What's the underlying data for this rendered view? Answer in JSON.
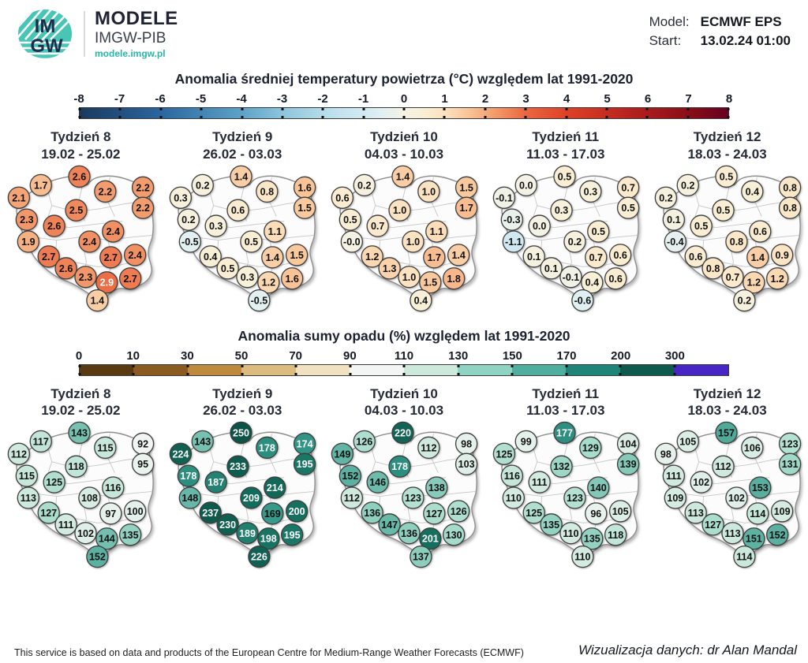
{
  "header": {
    "logo": {
      "line1": "IM",
      "line2": "GW"
    },
    "brand": "MODELE",
    "brand_sub": "IMGW-PIB",
    "url": "modele.imgw.pl",
    "model_label": "Model:",
    "model_value": "ECMWF EPS",
    "start_label": "Start:",
    "start_value": "13.02.24 01:00"
  },
  "footer": {
    "left": "This service is based on data and products of the European Centre for Medium-Range Weather Forecasts (ECMWF)",
    "right": "Wizualizacja danych: dr Alan Mandal"
  },
  "weeks": [
    {
      "title": "Tydzień 8",
      "dates": "19.02 - 25.02"
    },
    {
      "title": "Tydzień 9",
      "dates": "26.02 - 03.03"
    },
    {
      "title": "Tydzień 10",
      "dates": "04.03 - 10.03"
    },
    {
      "title": "Tydzień 11",
      "dates": "11.03 - 17.03"
    },
    {
      "title": "Tydzień 12",
      "dates": "18.03 - 24.03"
    }
  ],
  "stations": [
    [
      52,
      26
    ],
    [
      101,
      15
    ],
    [
      134,
      34
    ],
    [
      182,
      29
    ],
    [
      24,
      42
    ],
    [
      97,
      58
    ],
    [
      182,
      55
    ],
    [
      34,
      70
    ],
    [
      69,
      78
    ],
    [
      144,
      85
    ],
    [
      114,
      98
    ],
    [
      36,
      98
    ],
    [
      62,
      117
    ],
    [
      141,
      118
    ],
    [
      172,
      115
    ],
    [
      84,
      132
    ],
    [
      109,
      143
    ],
    [
      136,
      150
    ],
    [
      166,
      145
    ],
    [
      124,
      173
    ]
  ],
  "chart_data": [
    {
      "type": "scatter",
      "title": "Anomalia średniej temperatury powietrza (°C) względem lat 1991-2020",
      "unit": "°C",
      "legend_position": "top",
      "colorbar": {
        "kind": "continuous",
        "range": [
          -8,
          8
        ],
        "ticks": [
          "-8",
          "-7",
          "-6",
          "-5",
          "-4",
          "-3",
          "-2",
          "-1",
          "0",
          "1",
          "2",
          "3",
          "4",
          "5",
          "6",
          "7",
          "8"
        ],
        "stops": [
          [
            -8,
            "#1a3a5e"
          ],
          [
            -6,
            "#2a669f"
          ],
          [
            -4,
            "#5ea2c9"
          ],
          [
            -3,
            "#8ec4dc"
          ],
          [
            -2,
            "#b4dcea"
          ],
          [
            -1.5,
            "#c6e4ef"
          ],
          [
            -1,
            "#d2e9f2"
          ],
          [
            -0.5,
            "#e2f0f2"
          ],
          [
            0,
            "#f4f2e4"
          ],
          [
            0.5,
            "#f9eed4"
          ],
          [
            1,
            "#fbe2c0"
          ],
          [
            1.5,
            "#f9c99e"
          ],
          [
            2,
            "#f5ab7c"
          ],
          [
            2.5,
            "#f0895c"
          ],
          [
            3,
            "#ea6740"
          ],
          [
            4,
            "#dd4227"
          ],
          [
            5,
            "#c62d20"
          ],
          [
            6,
            "#a91b1e"
          ],
          [
            7,
            "#8a0e17"
          ],
          [
            8,
            "#67001f"
          ]
        ]
      },
      "white_text_min": 2.9,
      "series": [
        {
          "name": "Tydzień 8",
          "values": [
            "1.7",
            "2.6",
            "2.2",
            "2.2",
            "2.1",
            "2.5",
            "2.2",
            "2.3",
            "2.6",
            "2.4",
            "2.4",
            "1.9",
            "2.7",
            "2.7",
            "2.4",
            "2.6",
            "2.3",
            "2.9",
            "2.7",
            "1.4"
          ]
        },
        {
          "name": "Tydzień 9",
          "values": [
            "0.2",
            "1.4",
            "0.8",
            "1.6",
            "0.3",
            "0.6",
            "1.5",
            "0.2",
            "0.3",
            "1.1",
            "0.5",
            "-0.5",
            "0.4",
            "1.4",
            "1.5",
            "0.5",
            "0.3",
            "1.2",
            "1.6",
            "-0.5"
          ]
        },
        {
          "name": "Tydzień 10",
          "values": [
            "0.2",
            "1.4",
            "1.0",
            "1.5",
            "0.6",
            "1.0",
            "1.7",
            "0.5",
            "0.7",
            "1.1",
            "1.0",
            "-0.0",
            "1.2",
            "1.7",
            "1.4",
            "1.3",
            "1.0",
            "1.5",
            "1.8",
            "0.4"
          ]
        },
        {
          "name": "Tydzień 11",
          "values": [
            "0.0",
            "0.5",
            "0.3",
            "0.7",
            "-0.1",
            "0.3",
            "0.5",
            "-0.3",
            "0.0",
            "0.5",
            "0.2",
            "-1.1",
            "0.1",
            "0.7",
            "0.6",
            "0.1",
            "-0.1",
            "0.4",
            "0.6",
            "-0.6"
          ]
        },
        {
          "name": "Tydzień 12",
          "values": [
            "0.2",
            "0.5",
            "0.4",
            "0.8",
            "0.2",
            "0.5",
            "0.8",
            "0.1",
            "0.5",
            "0.6",
            "0.8",
            "-0.4",
            "0.6",
            "1.4",
            "0.9",
            "0.8",
            "0.7",
            "1.2",
            "1.2",
            "0.2"
          ]
        }
      ]
    },
    {
      "type": "scatter",
      "title": "Anomalia sumy opadu (%) względem lat 1991-2020",
      "unit": "%",
      "legend_position": "top",
      "colorbar": {
        "kind": "segmented",
        "ticks": [
          "0",
          "10",
          "30",
          "50",
          "70",
          "90",
          "110",
          "130",
          "150",
          "170",
          "200",
          "300"
        ],
        "segment_colors": [
          "#5a3a10",
          "#8a5a20",
          "#c08a3e",
          "#dbbc7e",
          "#f0e2c0",
          "#f3f5f4",
          "#cde9dc",
          "#8fd4c2",
          "#4fae9d",
          "#1f8578",
          "#0e5a4c",
          "#4826c6"
        ],
        "stops": [
          [
            0,
            "#5a3a10"
          ],
          [
            10,
            "#8a5a20"
          ],
          [
            30,
            "#c08a3e"
          ],
          [
            50,
            "#dbbc7e"
          ],
          [
            70,
            "#f0e2c0"
          ],
          [
            90,
            "#f3f5f4"
          ],
          [
            110,
            "#d4ebe1"
          ],
          [
            130,
            "#a4dbca"
          ],
          [
            150,
            "#5fb3a3"
          ],
          [
            170,
            "#35998a"
          ],
          [
            200,
            "#15705f"
          ],
          [
            250,
            "#0c5347"
          ],
          [
            300,
            "#083c32"
          ]
        ]
      },
      "white_text_min": 170,
      "series": [
        {
          "name": "Tydzień 8",
          "values": [
            "117",
            "143",
            "115",
            "92",
            "112",
            "118",
            "95",
            "115",
            "125",
            "116",
            "108",
            "113",
            "127",
            "97",
            "100",
            "111",
            "102",
            "144",
            "135",
            "152"
          ]
        },
        {
          "name": "Tydzień 9",
          "values": [
            "143",
            "250",
            "178",
            "174",
            "224",
            "233",
            "195",
            "178",
            "187",
            "214",
            "209",
            "148",
            "237",
            "169",
            "200",
            "230",
            "189",
            "198",
            "195",
            "226"
          ]
        },
        {
          "name": "Tydzień 10",
          "values": [
            "126",
            "220",
            "112",
            "98",
            "149",
            "178",
            "103",
            "152",
            "146",
            "138",
            "123",
            "112",
            "136",
            "127",
            "126",
            "147",
            "136",
            "201",
            "130",
            "137"
          ]
        },
        {
          "name": "Tydzień 11",
          "values": [
            "99",
            "177",
            "129",
            "104",
            "125",
            "132",
            "139",
            "116",
            "111",
            "140",
            "123",
            "110",
            "125",
            "96",
            "105",
            "135",
            "110",
            "135",
            "118",
            "110"
          ]
        },
        {
          "name": "Tydzień 12",
          "values": [
            "105",
            "157",
            "106",
            "123",
            "98",
            "112",
            "131",
            "111",
            "102",
            "153",
            "102",
            "109",
            "113",
            "114",
            "109",
            "127",
            "113",
            "151",
            "152",
            "114"
          ]
        }
      ]
    }
  ]
}
